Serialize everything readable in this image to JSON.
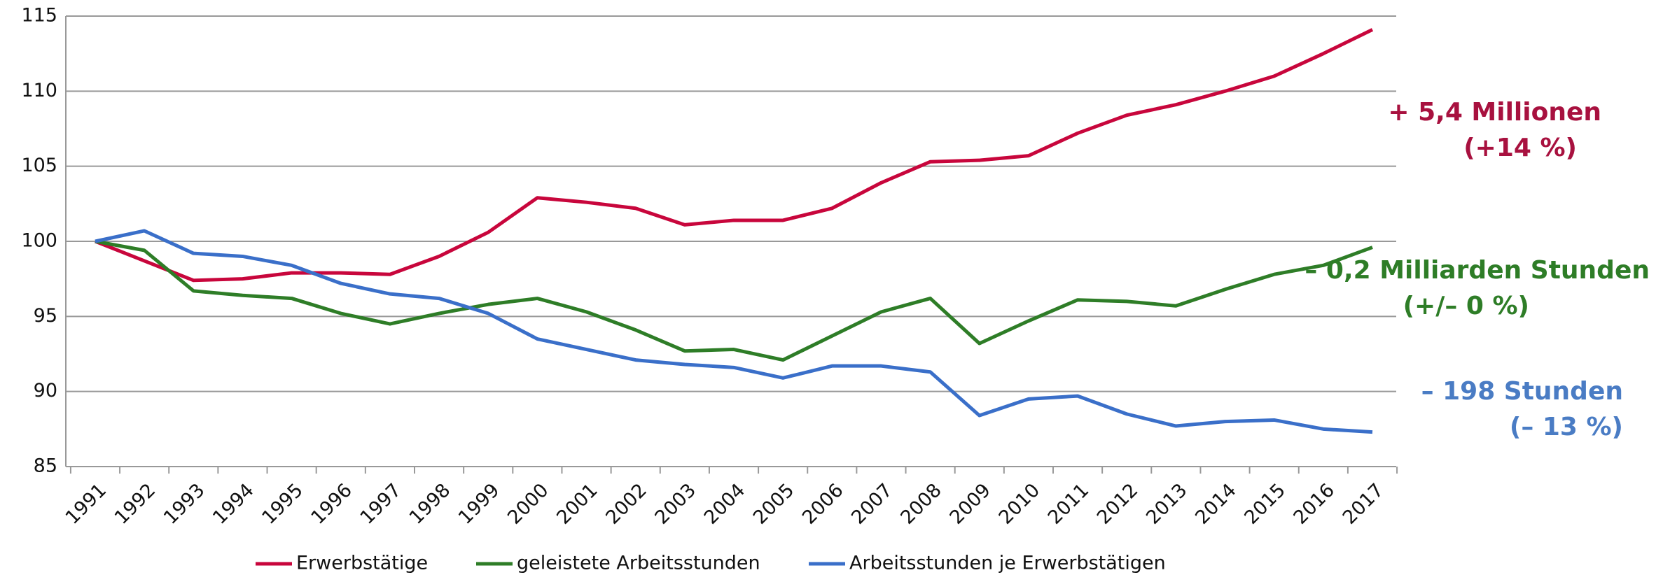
{
  "chart_data": {
    "type": "line",
    "categories": [
      "1991",
      "1992",
      "1993",
      "1994",
      "1995",
      "1996",
      "1997",
      "1998",
      "1999",
      "2000",
      "2001",
      "2002",
      "2003",
      "2004",
      "2005",
      "2006",
      "2007",
      "2008",
      "2009",
      "2010",
      "2011",
      "2012",
      "2013",
      "2014",
      "2015",
      "2016",
      "2017"
    ],
    "series": [
      {
        "name": "Erwerbstätige",
        "color": "#c8063c",
        "values": [
          100,
          98.7,
          97.4,
          97.5,
          97.9,
          97.9,
          97.8,
          99.0,
          100.6,
          102.9,
          102.6,
          102.2,
          101.1,
          101.4,
          101.4,
          102.2,
          103.9,
          105.3,
          105.4,
          105.7,
          107.2,
          108.4,
          109.1,
          110.0,
          111.0,
          112.5,
          114.1
        ]
      },
      {
        "name": "geleistete Arbeitsstunden",
        "color": "#2e7d27",
        "values": [
          100,
          99.4,
          96.7,
          96.4,
          96.2,
          95.2,
          94.5,
          95.2,
          95.8,
          96.2,
          95.3,
          94.1,
          92.7,
          92.8,
          92.1,
          93.7,
          95.3,
          96.2,
          93.2,
          94.7,
          96.1,
          96.0,
          95.7,
          96.8,
          97.8,
          98.4,
          99.6
        ]
      },
      {
        "name": "Arbeitsstunden je Erwerbstätigen",
        "color": "#3a6fc9",
        "values": [
          100,
          100.7,
          99.2,
          99.0,
          98.4,
          97.2,
          96.5,
          96.2,
          95.2,
          93.5,
          92.8,
          92.1,
          91.8,
          91.6,
          90.9,
          91.7,
          91.7,
          91.3,
          88.4,
          89.5,
          89.7,
          88.5,
          87.7,
          88.0,
          88.1,
          87.5,
          87.3
        ]
      }
    ],
    "annotations": [
      {
        "lines": [
          "+ 5,4 Millionen",
          "(+14 %)"
        ],
        "color": "#a8113f"
      },
      {
        "lines": [
          "– 0,2 Milliarden Stunden",
          "(+/– 0 %)"
        ],
        "color": "#2e7d27"
      },
      {
        "lines": [
          "– 198 Stunden",
          "(– 13 %)"
        ],
        "color": "#4a7cc4"
      }
    ],
    "ylim": [
      85,
      115
    ],
    "yticks": [
      85,
      90,
      95,
      100,
      105,
      110,
      115
    ],
    "grid": true,
    "legend": "bottom"
  }
}
